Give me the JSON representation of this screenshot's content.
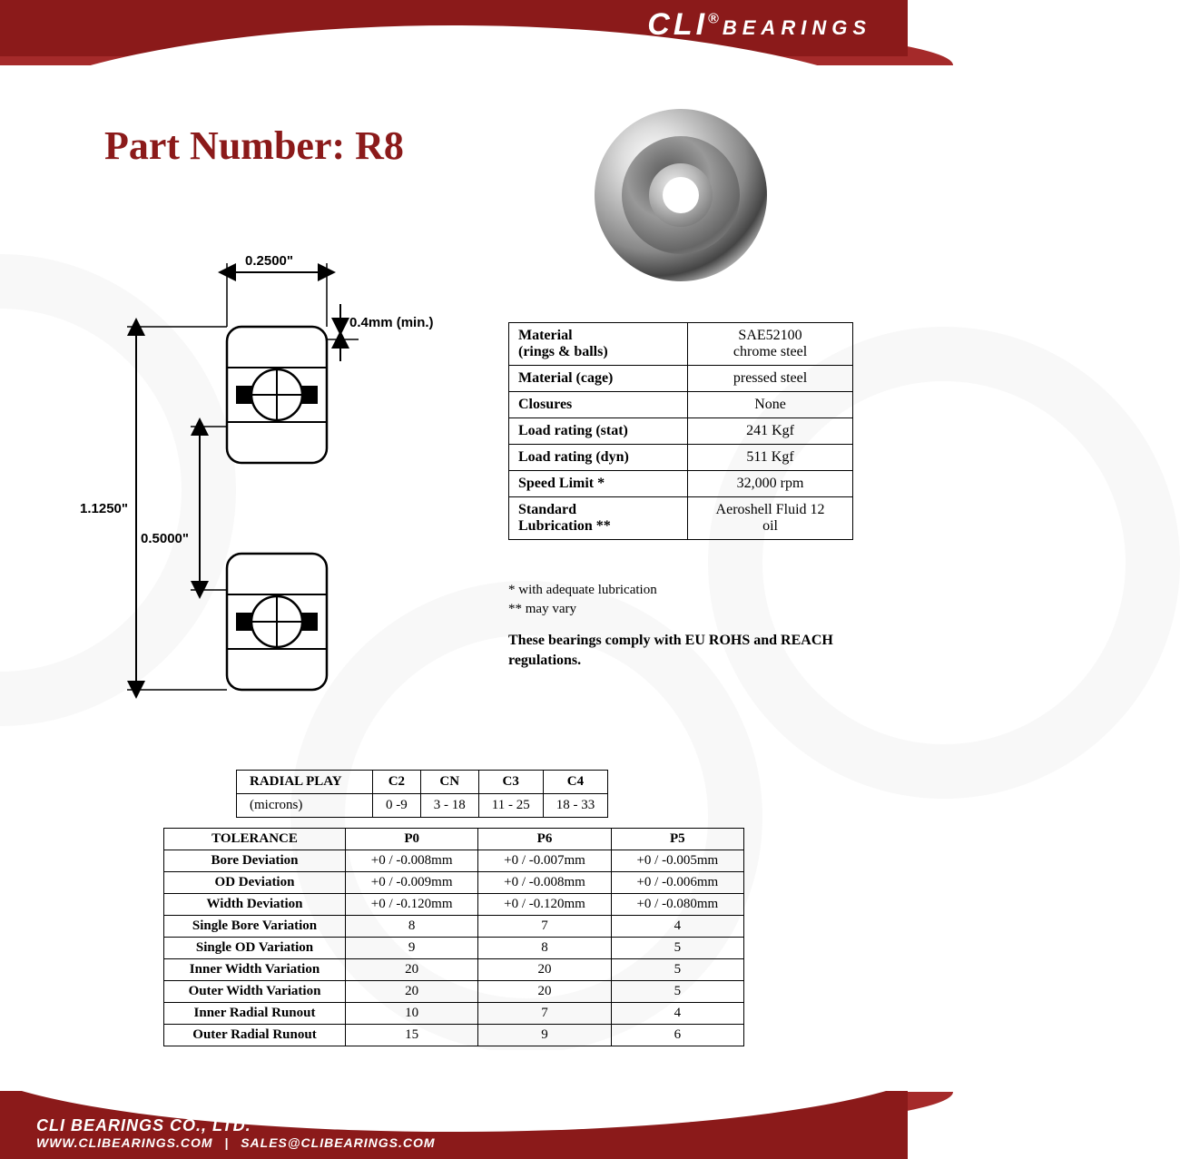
{
  "brand": {
    "name": "CLI",
    "reg": "®",
    "sub": "BEARINGS"
  },
  "title": "Part Number: R8",
  "colors": {
    "brand_red": "#8b1a1a",
    "brand_red_light": "#a52a2a",
    "text": "#000000",
    "bg": "#ffffff"
  },
  "diagram": {
    "width_label": "0.2500\"",
    "chamfer_label": "0.4mm (min.)",
    "od_label": "1.1250\"",
    "bore_label": "0.5000\""
  },
  "specs": [
    {
      "k": "Material\n(rings & balls)",
      "v": "SAE52100\nchrome steel"
    },
    {
      "k": "Material (cage)",
      "v": "pressed steel"
    },
    {
      "k": "Closures",
      "v": "None"
    },
    {
      "k": "Load rating (stat)",
      "v": "241 Kgf"
    },
    {
      "k": "Load rating (dyn)",
      "v": "511 Kgf"
    },
    {
      "k": "Speed Limit *",
      "v": "32,000 rpm"
    },
    {
      "k": "Standard\nLubrication **",
      "v": "Aeroshell Fluid 12\noil"
    }
  ],
  "footnote1": "  * with adequate lubrication",
  "footnote2": "** may vary",
  "compliance": "These bearings comply with EU ROHS and REACH  regulations.",
  "radial_play": {
    "header": [
      "RADIAL PLAY",
      "C2",
      "CN",
      "C3",
      "C4"
    ],
    "row": [
      "(microns)",
      "0 -9",
      "3 - 18",
      "11 - 25",
      "18 - 33"
    ]
  },
  "tolerance": {
    "header": [
      "TOLERANCE",
      "P0",
      "P6",
      "P5"
    ],
    "rows": [
      [
        "Bore Deviation",
        "+0 / -0.008mm",
        "+0 / -0.007mm",
        "+0 / -0.005mm"
      ],
      [
        "OD Deviation",
        "+0 / -0.009mm",
        "+0 / -0.008mm",
        "+0 / -0.006mm"
      ],
      [
        "Width Deviation",
        "+0 / -0.120mm",
        "+0 / -0.120mm",
        "+0 / -0.080mm"
      ],
      [
        "Single Bore Variation",
        "8",
        "7",
        "4"
      ],
      [
        "Single OD Variation",
        "9",
        "8",
        "5"
      ],
      [
        "Inner Width Variation",
        "20",
        "20",
        "5"
      ],
      [
        "Outer Width Variation",
        "20",
        "20",
        "5"
      ],
      [
        "Inner Radial Runout",
        "10",
        "7",
        "4"
      ],
      [
        "Outer Radial Runout",
        "15",
        "9",
        "6"
      ]
    ]
  },
  "footer": {
    "company": "CLI BEARINGS CO., LTD.",
    "url": "WWW.CLIBEARINGS.COM",
    "sep": "|",
    "email": "SALES@CLIBEARINGS.COM"
  }
}
